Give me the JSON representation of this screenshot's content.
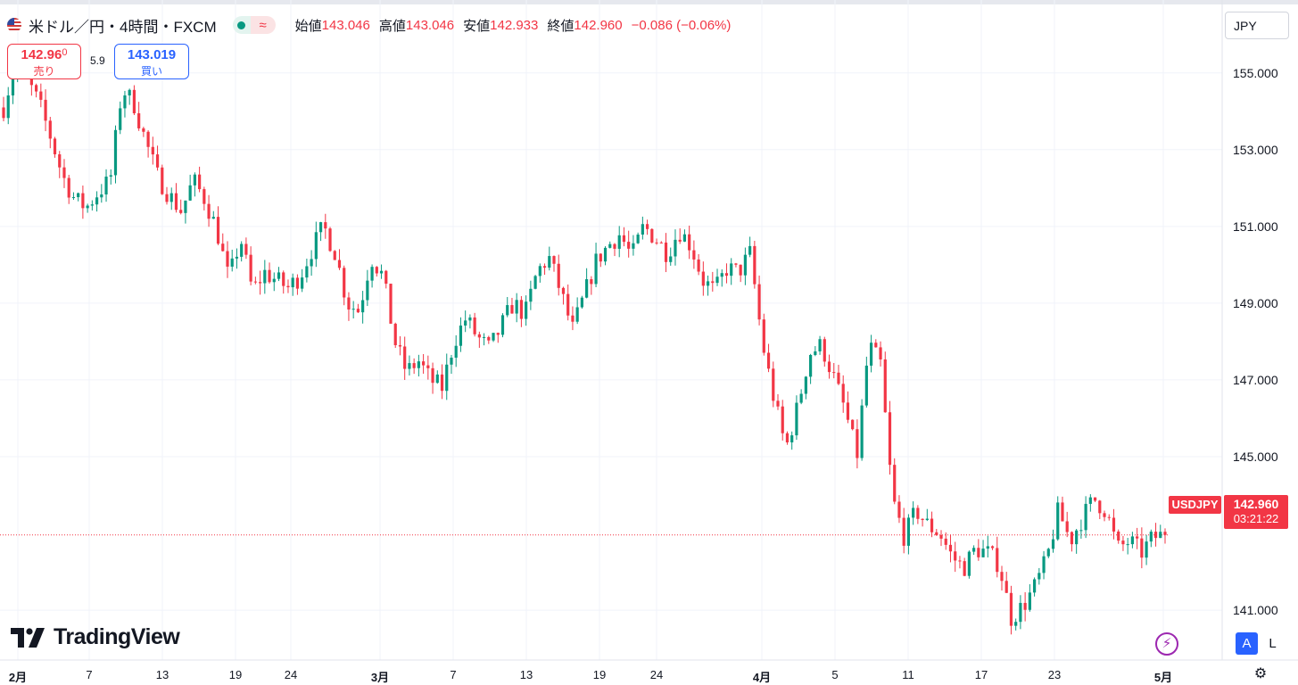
{
  "header": {
    "symbol_title": "米ドル／円・4時間・FXCM",
    "flag_icon": "us-flag-icon",
    "live_indicator_icon": "market-open-dot-icon",
    "wave_icon_glyph": "≈",
    "ohlc": {
      "open_label": "始値",
      "open": "143.046",
      "high_label": "高値",
      "high": "143.046",
      "low_label": "安値",
      "low": "142.933",
      "close_label": "終値",
      "close": "142.960",
      "change": "−0.086 (−0.06%)"
    }
  },
  "trade": {
    "sell_price_main": "142.96",
    "sell_price_small": "0",
    "sell_label": "売り",
    "spread": "5.9",
    "buy_price": "143.019",
    "buy_label": "買い"
  },
  "currency_selector": "JPY",
  "price_tag": {
    "symbol": "USDJPY",
    "price": "142.960",
    "countdown": "03:21:22"
  },
  "brand": "TradingView",
  "bottom_buttons": {
    "auto": "A",
    "log": "L",
    "bolt_glyph": "⚡",
    "gear_glyph": "⚙"
  },
  "colors": {
    "up": "#089981",
    "down": "#f23645",
    "grid": "#f0f3fa",
    "price_line": "#f23645"
  },
  "chart_data": {
    "type": "candlestick",
    "timeframe": "4時間",
    "current_price": 142.96,
    "ylim": [
      139.7,
      156.9
    ],
    "y_ticks": [
      {
        "value": 155,
        "label": "155.000"
      },
      {
        "value": 153,
        "label": "153.000"
      },
      {
        "value": 151,
        "label": "151.000"
      },
      {
        "value": 149,
        "label": "149.000"
      },
      {
        "value": 147,
        "label": "147.000"
      },
      {
        "value": 145,
        "label": "145.000"
      },
      {
        "value": 141,
        "label": "141.000"
      }
    ],
    "x_ticks": [
      {
        "label": "2月",
        "bold": true
      },
      {
        "label": "7",
        "bold": false
      },
      {
        "label": "13",
        "bold": false
      },
      {
        "label": "19",
        "bold": false
      },
      {
        "label": "24",
        "bold": false
      },
      {
        "label": "3月",
        "bold": true
      },
      {
        "label": "7",
        "bold": false
      },
      {
        "label": "13",
        "bold": false
      },
      {
        "label": "19",
        "bold": false
      },
      {
        "label": "24",
        "bold": false
      },
      {
        "label": "4月",
        "bold": true
      },
      {
        "label": "5",
        "bold": false
      },
      {
        "label": "11",
        "bold": false
      },
      {
        "label": "17",
        "bold": false
      },
      {
        "label": "23",
        "bold": false
      },
      {
        "label": "5月",
        "bold": true
      }
    ],
    "close_path": [
      154.1,
      155.3,
      154.8,
      154.2,
      153.3,
      152.3,
      151.7,
      151.5,
      151.9,
      152.2,
      154.6,
      154.2,
      153.2,
      152.3,
      151.8,
      151.4,
      152.2,
      151.7,
      150.9,
      149.6,
      150.7,
      149.3,
      149.8,
      149.6,
      149.4,
      149.7,
      150.4,
      151.0,
      150.3,
      149.0,
      148.8,
      150.2,
      149.7,
      148.0,
      147.2,
      147.5,
      147.0,
      146.8,
      148.0,
      148.6,
      148.1,
      147.8,
      148.4,
      149.0,
      148.7,
      149.8,
      150.2,
      149.3,
      148.3,
      149.2,
      150.1,
      150.5,
      150.8,
      150.2,
      151.0,
      150.7,
      150.3,
      150.9,
      150.5,
      149.6,
      149.3,
      149.9,
      149.8,
      150.3,
      148.0,
      146.5,
      145.2,
      146.3,
      147.7,
      147.9,
      147.1,
      146.2,
      145.0,
      147.9,
      147.4,
      143.9,
      142.9,
      143.6,
      143.2,
      143.0,
      142.4,
      142.1,
      142.6,
      142.5,
      142.2,
      140.8,
      141.1,
      141.6,
      142.3,
      143.6,
      142.8,
      143.4,
      143.9,
      143.6,
      142.6,
      142.8,
      142.5,
      142.9,
      142.96
    ]
  }
}
